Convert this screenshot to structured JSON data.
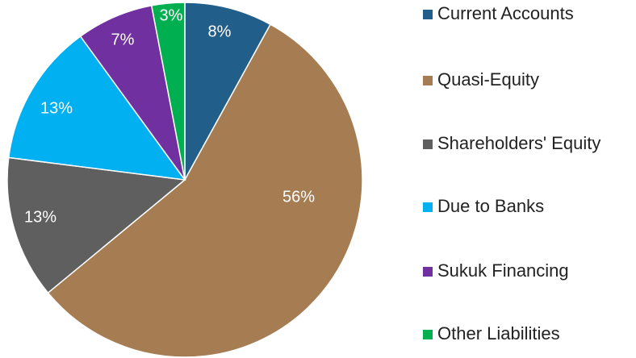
{
  "chart_data": {
    "type": "pie",
    "categories": [
      "Current Accounts",
      "Quasi-Equity",
      "Shareholders' Equity",
      "Due to Banks",
      "Sukuk Financing",
      "Other Liabilities"
    ],
    "values": [
      8,
      56,
      13,
      13,
      7,
      3
    ],
    "value_labels": [
      "8%",
      "56%",
      "13%",
      "13%",
      "7%",
      "3%"
    ],
    "colors": [
      "#215e8a",
      "#a67c52",
      "#5f5f5f",
      "#00b0f0",
      "#7030a0",
      "#00b050"
    ],
    "legend": "right"
  }
}
